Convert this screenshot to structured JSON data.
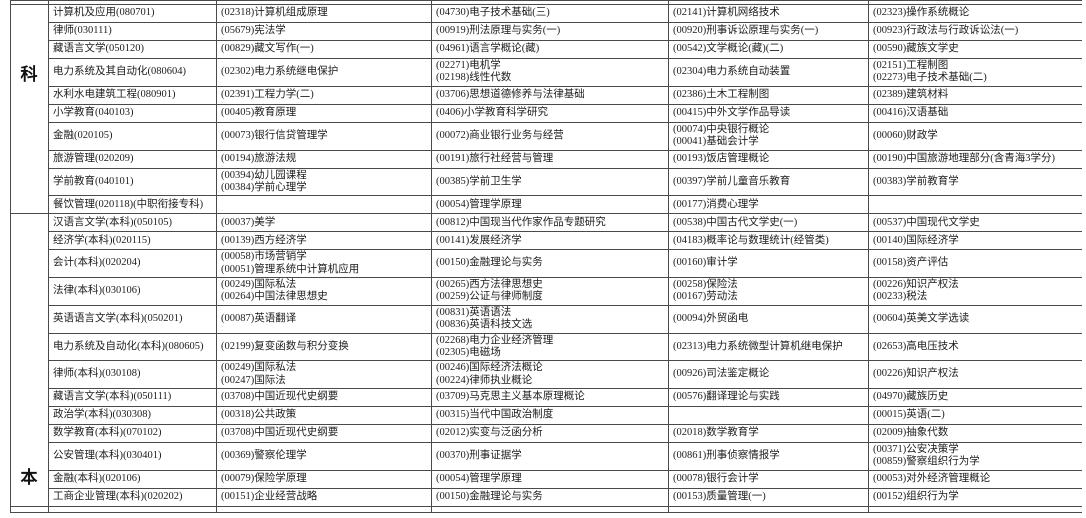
{
  "page": {
    "background": "#ffffff",
    "border_color": "#4a4a4a",
    "text_color": "#1c1c1c"
  },
  "table": {
    "sections": [
      {
        "label": "科",
        "rows": [
          {
            "major": "计算机及应用(080701)",
            "courses": [
              [
                "(02318)计算机组成原理"
              ],
              [
                "(04730)电子技术基础(三)"
              ],
              [
                "(02141)计算机网络技术"
              ],
              [
                "(02323)操作系统概论"
              ]
            ]
          },
          {
            "major": "律师(030111)",
            "courses": [
              [
                "(05679)宪法学"
              ],
              [
                "(00919)刑法原理与实务(一)"
              ],
              [
                "(00920)刑事诉讼原理与实务(一)"
              ],
              [
                "(00923)行政法与行政诉讼法(一)"
              ]
            ]
          },
          {
            "major": "藏语言文学(050120)",
            "courses": [
              [
                "(00829)藏文写作(一)"
              ],
              [
                "(04961)语言学概论(藏)"
              ],
              [
                "(00542)文学概论(藏)(二)"
              ],
              [
                "(00590)藏族文学史"
              ]
            ]
          },
          {
            "major": "电力系统及其自动化(080604)",
            "courses": [
              [
                "(02302)电力系统继电保护"
              ],
              [
                "(02271)电机学",
                "(02198)线性代数"
              ],
              [
                "(02304)电力系统自动装置"
              ],
              [
                "(02151)工程制图",
                "(02273)电子技术基础(二)"
              ]
            ]
          },
          {
            "major": "水利水电建筑工程(080901)",
            "courses": [
              [
                "(02391)工程力学(二)"
              ],
              [
                "(03706)思想道德修养与法律基础"
              ],
              [
                "(02386)土木工程制图"
              ],
              [
                "(02389)建筑材料"
              ]
            ]
          },
          {
            "major": "小学教育(040103)",
            "courses": [
              [
                "(00405)教育原理"
              ],
              [
                "(0406)小学教育科学研究"
              ],
              [
                "(00415)中外文学作品导读"
              ],
              [
                "(00416)汉语基础"
              ]
            ]
          },
          {
            "major": "金融(020105)",
            "courses": [
              [
                "(00073)银行信贷管理学"
              ],
              [
                "(00072)商业银行业务与经营"
              ],
              [
                "(00074)中央银行概论",
                "(00041)基础会计学"
              ],
              [
                "(00060)财政学"
              ]
            ]
          },
          {
            "major": "旅游管理(020209)",
            "courses": [
              [
                "(00194)旅游法规"
              ],
              [
                "(00191)旅行社经营与管理"
              ],
              [
                "(00193)饭店管理概论"
              ],
              [
                "(00190)中国旅游地理部分(含青海3学分)"
              ]
            ]
          },
          {
            "major": "学前教育(040101)",
            "courses": [
              [
                "(00394)幼儿园课程",
                "(00384)学前心理学"
              ],
              [
                "(00385)学前卫生学"
              ],
              [
                "(00397)学前儿童音乐教育"
              ],
              [
                "(00383)学前教育学"
              ]
            ]
          },
          {
            "major": "餐饮管理(020118)(中职衔接专科)",
            "courses": [
              [],
              [
                "(00054)管理学原理"
              ],
              [
                "(00177)消费心理学"
              ],
              []
            ]
          }
        ]
      },
      {
        "label": "本",
        "rows": [
          {
            "major": "汉语言文学(本科)(050105)",
            "courses": [
              [
                "(00037)美学"
              ],
              [
                "(00812)中国现当代作家作品专题研究"
              ],
              [
                "(00538)中国古代文学史(一)"
              ],
              [
                "(00537)中国现代文学史"
              ]
            ]
          },
          {
            "major": "经济学(本科)(020115)",
            "courses": [
              [
                "(00139)西方经济学"
              ],
              [
                "(00141)发展经济学"
              ],
              [
                "(04183)概率论与数理统计(经管类)"
              ],
              [
                "(00140)国际经济学"
              ]
            ]
          },
          {
            "major": "会计(本科)(020204)",
            "courses": [
              [
                "(00058)市场营销学",
                "(00051)管理系统中计算机应用"
              ],
              [
                "(00150)金融理论与实务"
              ],
              [
                "(00160)审计学"
              ],
              [
                "(00158)资产评估"
              ]
            ]
          },
          {
            "major": "法律(本科)(030106)",
            "courses": [
              [
                "(00249)国际私法",
                "(00264)中国法律思想史"
              ],
              [
                "(00265)西方法律思想史",
                "(00259)公证与律师制度"
              ],
              [
                "(00258)保险法",
                "(00167)劳动法"
              ],
              [
                "(00226)知识产权法",
                "(00233)税法"
              ]
            ]
          },
          {
            "major": "英语语言文学(本科)(050201)",
            "courses": [
              [
                "(00087)英语翻译"
              ],
              [
                "(00831)英语语法",
                "(00836)英语科技文选"
              ],
              [
                "(00094)外贸函电"
              ],
              [
                "(00604)英美文学选读"
              ]
            ]
          },
          {
            "major": "电力系统及自动化(本科)(080605)",
            "courses": [
              [
                "(02199)复变函数与积分变换"
              ],
              [
                "(02268)电力企业经济管理",
                "(02305)电磁场"
              ],
              [
                "(02313)电力系统微型计算机继电保护"
              ],
              [
                "(02653)高电压技术"
              ]
            ]
          },
          {
            "major": "律师(本科)(030108)",
            "courses": [
              [
                "(00249)国际私法",
                "(00247)国际法"
              ],
              [
                "(00246)国际经济法概论",
                "(00224)律师执业概论"
              ],
              [
                "(00926)司法鉴定概论"
              ],
              [
                "(00226)知识产权法"
              ]
            ]
          },
          {
            "major": "藏语言文学(本科)(050111)",
            "courses": [
              [
                "(03708)中国近现代史纲要"
              ],
              [
                "(03709)马克思主义基本原理概论"
              ],
              [
                "(00576)翻译理论与实践"
              ],
              [
                "(04970)藏族历史"
              ]
            ]
          },
          {
            "major": "政治学(本科)(030308)",
            "courses": [
              [
                "(00318)公共政策"
              ],
              [
                "(00315)当代中国政治制度"
              ],
              [],
              [
                "(00015)英语(二)"
              ]
            ]
          },
          {
            "major": "数学教育(本科)(070102)",
            "courses": [
              [
                "(03708)中国近现代史纲要"
              ],
              [
                "(02012)实变与泛函分析"
              ],
              [
                "(02018)数学教育学"
              ],
              [
                "(02009)抽象代数"
              ]
            ]
          },
          {
            "major": "公安管理(本科)(030401)",
            "courses": [
              [
                "(00369)警察伦理学"
              ],
              [
                "(00370)刑事证据学"
              ],
              [
                "(00861)刑事侦察情报学"
              ],
              [
                "(00371)公安决策学",
                "(00859)警察组织行为学"
              ]
            ]
          },
          {
            "major": "金融(本科)(020106)",
            "courses": [
              [
                "(00079)保险学原理"
              ],
              [
                "(00054)管理学原理"
              ],
              [
                "(00078)银行会计学"
              ],
              [
                "(00053)对外经济管理概论"
              ]
            ]
          },
          {
            "major": "工商企业管理(本科)(020202)",
            "courses": [
              [
                "(00151)企业经营战略"
              ],
              [
                "(00150)金融理论与实务"
              ],
              [
                "(00153)质量管理(一)"
              ],
              [
                "(00152)组织行为学"
              ]
            ]
          }
        ]
      }
    ]
  }
}
